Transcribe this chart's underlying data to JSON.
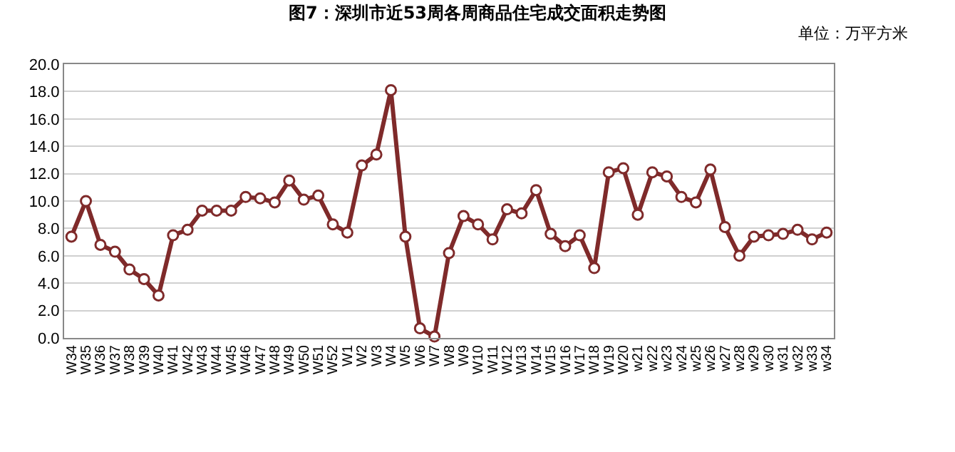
{
  "chart_data": {
    "type": "line",
    "title": "图7：深圳市近53周各周商品住宅成交面积走势图",
    "annotations": [
      "单位：万平方米"
    ],
    "categories": [
      "W34",
      "W35",
      "W36",
      "W37",
      "W38",
      "W39",
      "W40",
      "W41",
      "W42",
      "W43",
      "W44",
      "W45",
      "W46",
      "W47",
      "W48",
      "W49",
      "W50",
      "W51",
      "W52",
      "W1",
      "W2",
      "W3",
      "W4",
      "W5",
      "W6",
      "W7",
      "W8",
      "W9",
      "W10",
      "W11",
      "W12",
      "W13",
      "W14",
      "W15",
      "W16",
      "W17",
      "W18",
      "W19",
      "W20",
      "w21",
      "w22",
      "w23",
      "w24",
      "w25",
      "w26",
      "w27",
      "w28",
      "w29",
      "w30",
      "w31",
      "w32",
      "w33",
      "w34"
    ],
    "series": [
      {
        "color": "#7f2a2a",
        "values": [
          7.4,
          10.0,
          6.8,
          6.3,
          5.0,
          4.3,
          3.1,
          7.5,
          7.9,
          9.3,
          9.3,
          9.3,
          10.3,
          10.2,
          9.9,
          11.5,
          10.1,
          10.4,
          8.3,
          7.7,
          12.6,
          13.4,
          18.1,
          7.4,
          0.7,
          0.1,
          6.2,
          8.9,
          8.3,
          7.2,
          9.4,
          9.1,
          10.8,
          7.6,
          6.7,
          7.5,
          5.1,
          12.1,
          12.4,
          9.0,
          12.1,
          11.8,
          10.3,
          9.9,
          12.3,
          8.1,
          6.0,
          7.4,
          7.5,
          7.6,
          7.9,
          7.2,
          7.7
        ]
      }
    ],
    "ylim": [
      0,
      20
    ],
    "yticks": [
      {
        "value": 0,
        "label": "0.0"
      },
      {
        "value": 2,
        "label": "2.0"
      },
      {
        "value": 4,
        "label": "4.0"
      },
      {
        "value": 6,
        "label": "6.0"
      },
      {
        "value": 8,
        "label": "8.0"
      },
      {
        "value": 10,
        "label": "10.0"
      },
      {
        "value": 12,
        "label": "12.0"
      },
      {
        "value": 14,
        "label": "14.0"
      },
      {
        "value": 16,
        "label": "16.0"
      },
      {
        "value": 18,
        "label": "18.0"
      },
      {
        "value": 20,
        "label": "20.0"
      }
    ],
    "grid": "y",
    "marker": "circle",
    "line_style": "solid"
  }
}
